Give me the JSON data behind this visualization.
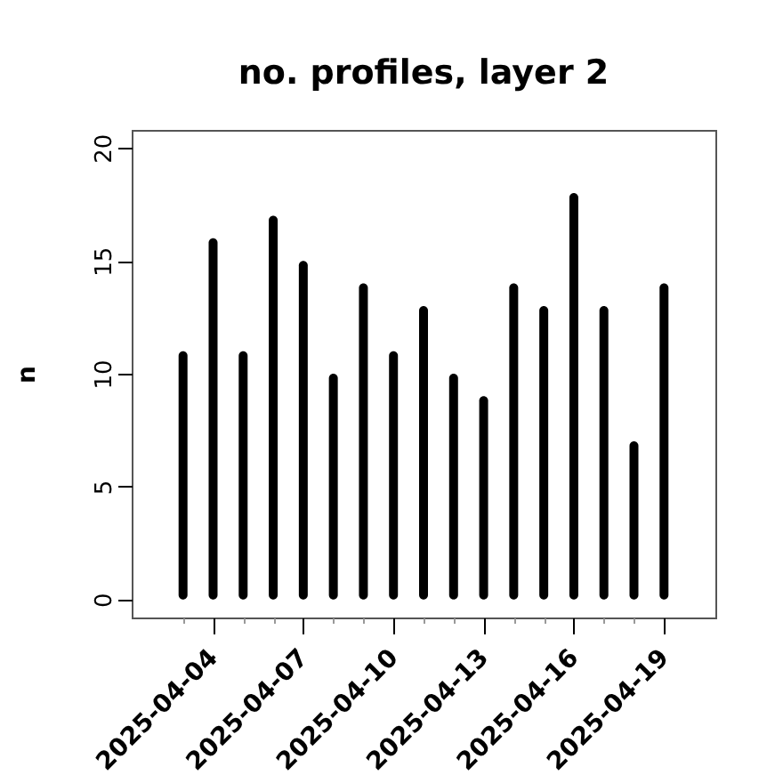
{
  "chart_data": {
    "type": "bar",
    "title": "no. profiles, layer 2",
    "ylabel": "n",
    "x": [
      "2025-04-03",
      "2025-04-04",
      "2025-04-05",
      "2025-04-06",
      "2025-04-07",
      "2025-04-08",
      "2025-04-09",
      "2025-04-10",
      "2025-04-11",
      "2025-04-12",
      "2025-04-13",
      "2025-04-14",
      "2025-04-15",
      "2025-04-16",
      "2025-04-17",
      "2025-04-18",
      "2025-04-19"
    ],
    "values": [
      11,
      16,
      11,
      17,
      15,
      10,
      14,
      11,
      13,
      10,
      9,
      14,
      13,
      18,
      13,
      7,
      14
    ],
    "color": "#000000",
    "xlim": [
      "2025-04-01T07:00",
      "2025-04-20T17:00"
    ],
    "xticks": [
      {
        "value": "2025-04-03",
        "label": null
      },
      "2025-04-04",
      {
        "value": "2025-04-05",
        "label": null
      },
      {
        "value": "2025-04-06",
        "label": null
      },
      "2025-04-07",
      {
        "value": "2025-04-08",
        "label": null
      },
      {
        "value": "2025-04-09",
        "label": null
      },
      "2025-04-10",
      {
        "value": "2025-04-11",
        "label": null
      },
      {
        "value": "2025-04-12",
        "label": null
      },
      "2025-04-13",
      {
        "value": "2025-04-14",
        "label": null
      },
      {
        "value": "2025-04-15",
        "label": null
      },
      "2025-04-16",
      {
        "value": "2025-04-17",
        "label": null
      },
      {
        "value": "2025-04-18",
        "label": null
      },
      "2025-04-19"
    ],
    "ylim": [
      -0.8,
      20.8
    ],
    "yticks": [
      0,
      5,
      10,
      15,
      20
    ]
  }
}
